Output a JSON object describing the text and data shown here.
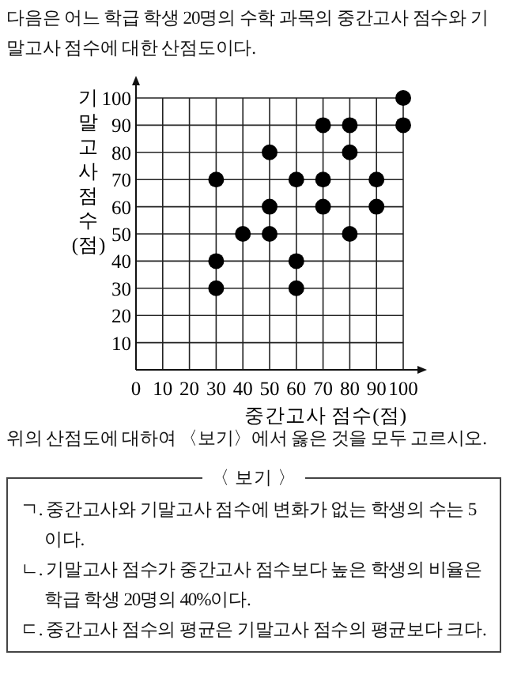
{
  "chart_data": {
    "type": "scatter",
    "title": "다음은 어느 학급 학생 20명의 수학 과목의 중간고사 점수와 기말고사 점수에 대한 산점도이다.",
    "xlabel": "중간고사 점수(점)",
    "ylabel": "기말고사 점수(점)",
    "x": [
      30,
      30,
      30,
      40,
      50,
      50,
      50,
      60,
      60,
      60,
      70,
      70,
      70,
      80,
      80,
      80,
      90,
      90,
      100,
      100
    ],
    "values": [
      70,
      40,
      30,
      50,
      80,
      60,
      50,
      70,
      40,
      30,
      90,
      70,
      60,
      90,
      80,
      50,
      70,
      60,
      100,
      90
    ],
    "color": "#000000",
    "marker": "circle",
    "grid": true,
    "xlim": [
      0,
      100
    ],
    "ylim": [
      0,
      100
    ],
    "xticks": [
      0,
      10,
      20,
      30,
      40,
      50,
      60,
      70,
      80,
      90,
      100
    ],
    "yticks": [
      10,
      20,
      30,
      40,
      50,
      60,
      70,
      80,
      90,
      100
    ],
    "annotations": [
      "위의 산점도에 대하여 〈보기〉에서 옳은 것을 모두 고르시오.",
      "〈 보기 〉",
      "ㄱ. 중간고사와 기말고사 점수에 변화가 없는 학생의 수는 5이다.",
      "ㄴ. 기말고사 점수가 중간고사 점수보다 높은 학생의 비율은 학급 학생 20명의 40%이다.",
      "ㄷ. 중간고사 점수의 평균은 기말고사 점수의 평균보다 크다."
    ]
  }
}
